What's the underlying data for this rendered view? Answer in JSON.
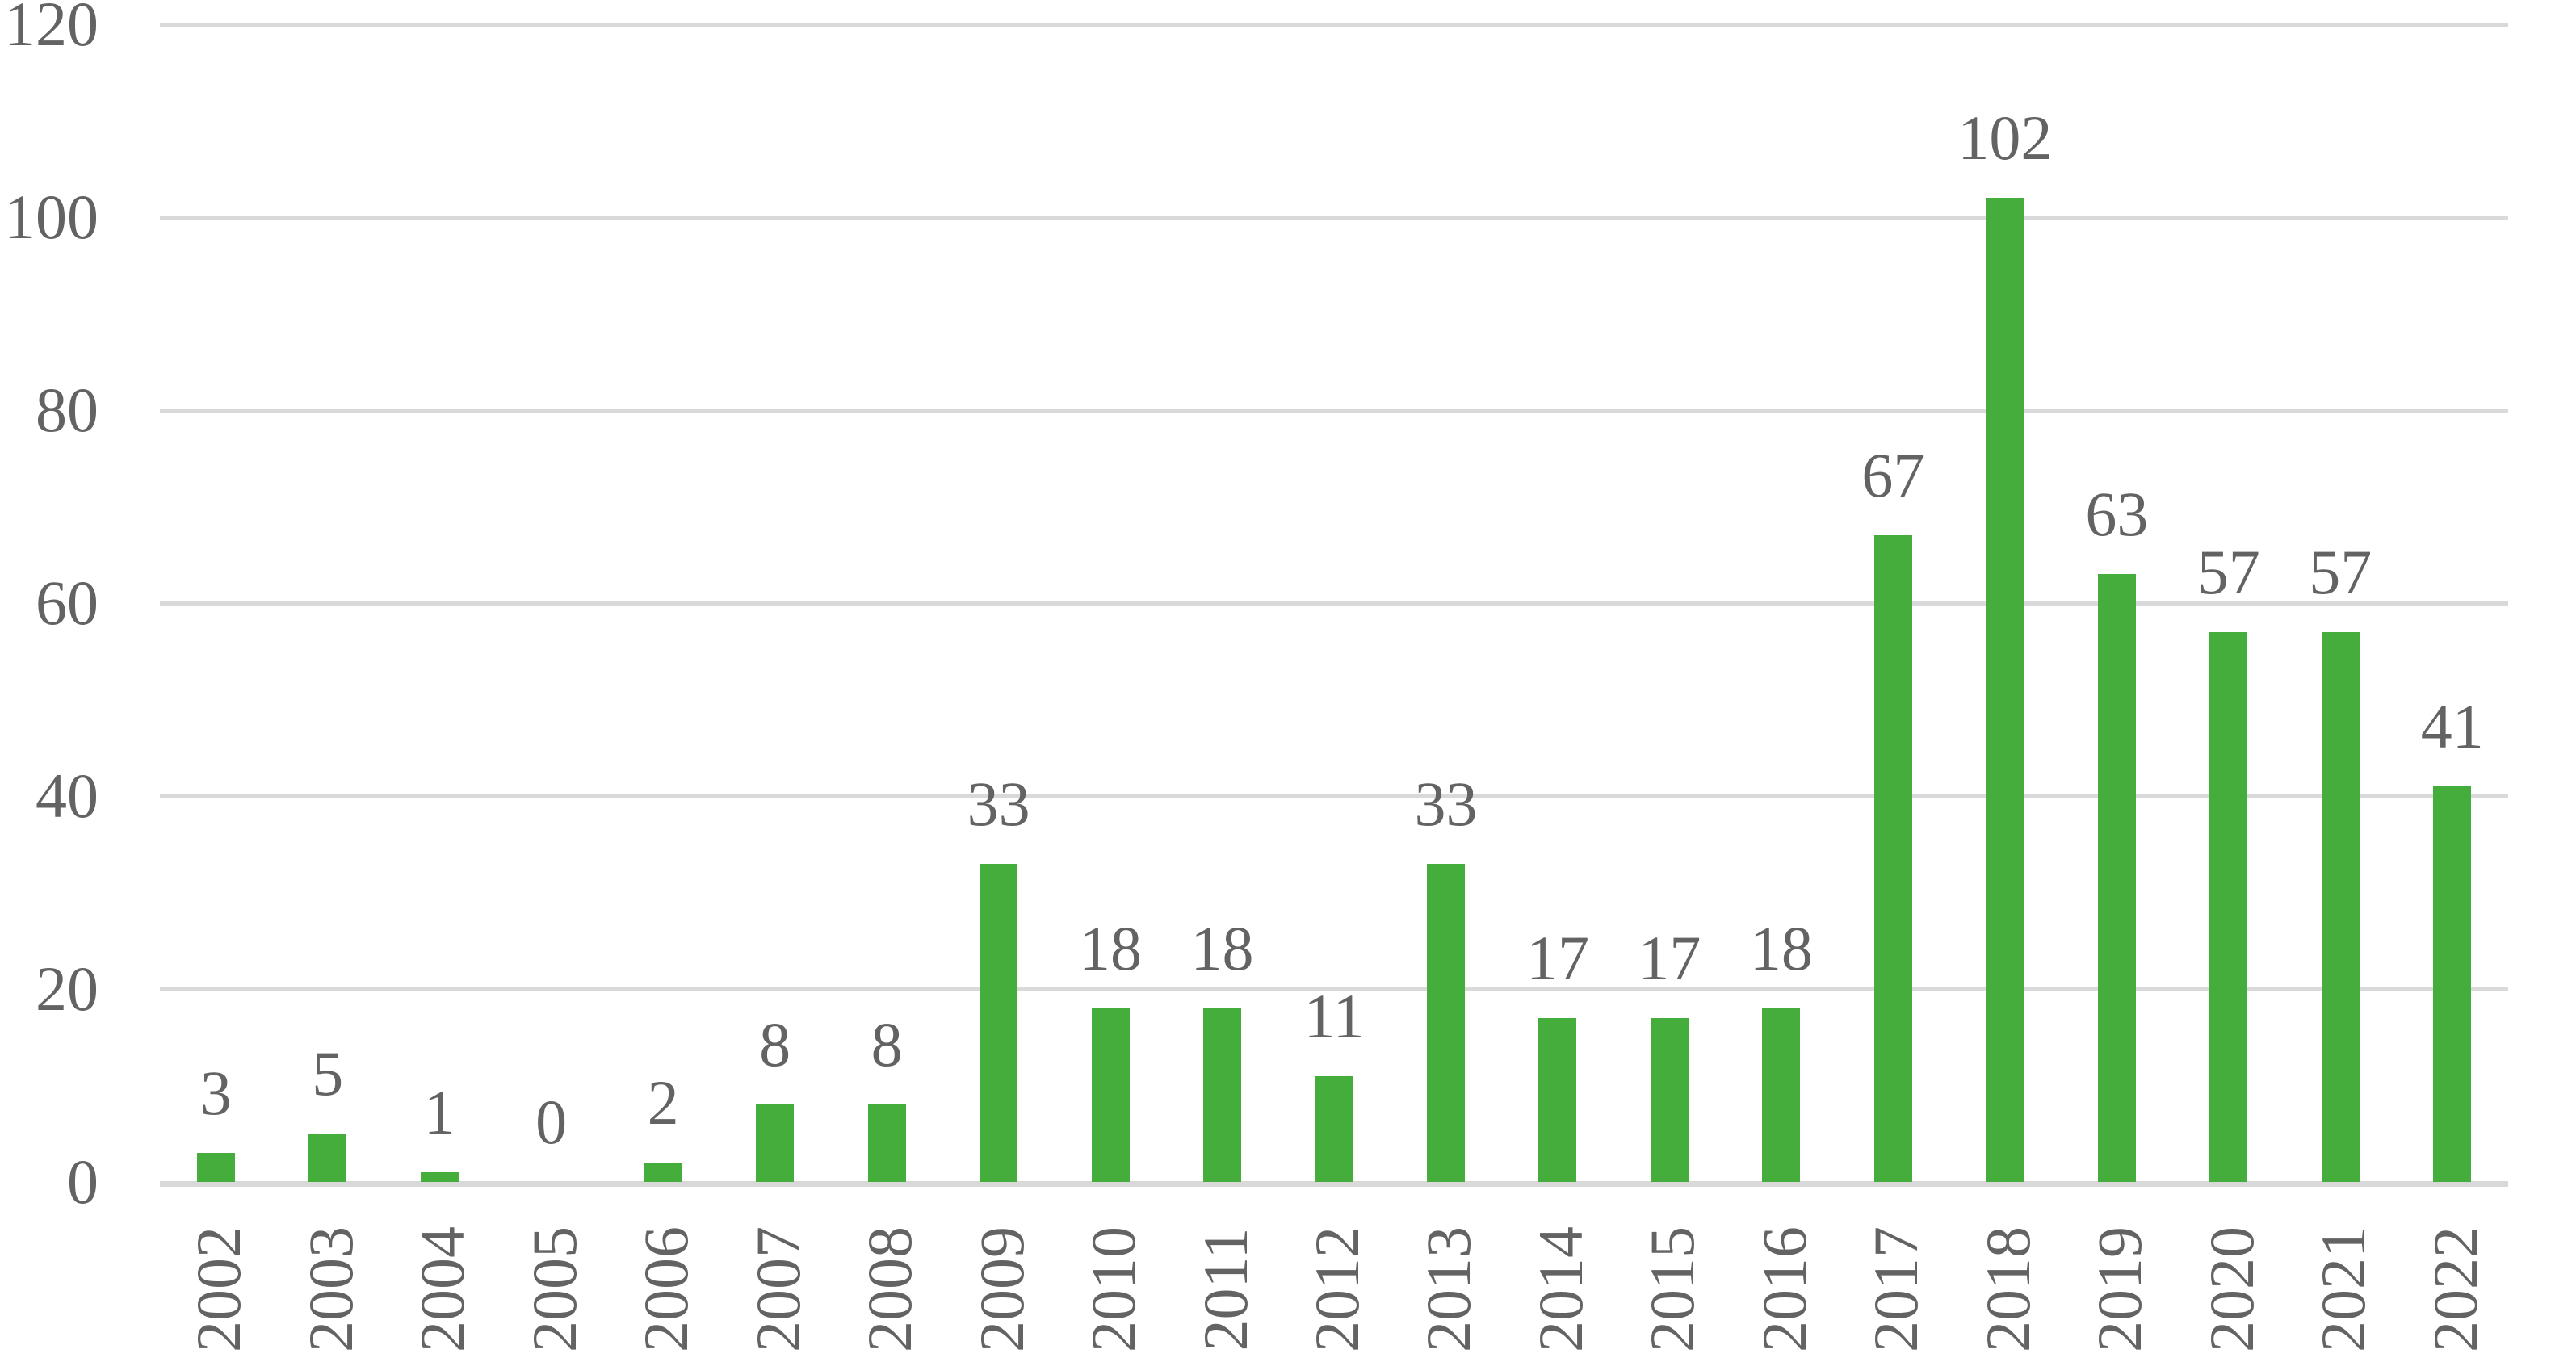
{
  "chart_data": {
    "type": "bar",
    "title": "",
    "xlabel": "",
    "ylabel": "",
    "categories": [
      "2002",
      "2003",
      "2004",
      "2005",
      "2006",
      "2007",
      "2008",
      "2009",
      "2010",
      "2011",
      "2012",
      "2013",
      "2014",
      "2015",
      "2016",
      "2017",
      "2018",
      "2019",
      "2020",
      "2021",
      "2022"
    ],
    "values": [
      3,
      5,
      1,
      0,
      2,
      8,
      8,
      33,
      18,
      18,
      11,
      33,
      17,
      17,
      18,
      67,
      102,
      63,
      57,
      57,
      41
    ],
    "data_labels": [
      "3",
      "5",
      "1",
      "0",
      "2",
      "8",
      "8",
      "33",
      "18",
      "18",
      "11",
      "33",
      "17",
      "17",
      "18",
      "67",
      "102",
      "63",
      "57",
      "57",
      "41"
    ],
    "ylim": [
      0,
      120
    ],
    "yticks": [
      "0",
      "20",
      "40",
      "60",
      "80",
      "100",
      "120"
    ],
    "ytick_values": [
      0,
      20,
      40,
      60,
      80,
      100,
      120
    ],
    "grid": "horizontal",
    "legend": "none",
    "bar_color": "#44ad3b",
    "gridline_color": "#d9d9d9",
    "axis_line_color": "#d9d9d9",
    "text_color": "#636363",
    "x_label_rotation_degrees": -90
  }
}
